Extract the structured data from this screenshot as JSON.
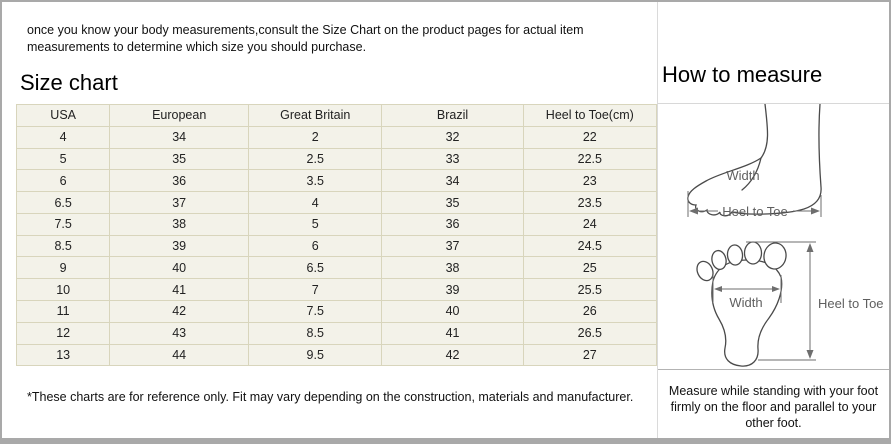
{
  "page": {
    "intro": "once you know your body measurements,consult the Size Chart on the product pages for actual item measurements to determine which size you should purchase.",
    "size_chart_title": "Size chart",
    "footnote": "*These charts are for reference only. Fit may vary depending on the construction, materials and manufacturer."
  },
  "size_table": {
    "columns": [
      "USA",
      "European",
      "Great Britain",
      "Brazil",
      "Heel to Toe(cm)"
    ],
    "rows": [
      [
        "4",
        "34",
        "2",
        "32",
        "22"
      ],
      [
        "5",
        "35",
        "2.5",
        "33",
        "22.5"
      ],
      [
        "6",
        "36",
        "3.5",
        "34",
        "23"
      ],
      [
        "6.5",
        "37",
        "4",
        "35",
        "23.5"
      ],
      [
        "7.5",
        "38",
        "5",
        "36",
        "24"
      ],
      [
        "8.5",
        "39",
        "6",
        "37",
        "24.5"
      ],
      [
        "9",
        "40",
        "6.5",
        "38",
        "25"
      ],
      [
        "10",
        "41",
        "7",
        "39",
        "25.5"
      ],
      [
        "11",
        "42",
        "7.5",
        "40",
        "26"
      ],
      [
        "12",
        "43",
        "8.5",
        "41",
        "26.5"
      ],
      [
        "13",
        "44",
        "9.5",
        "42",
        "27"
      ]
    ]
  },
  "measure_panel": {
    "title": "How to measure",
    "side_diagram": {
      "width_label": "Width",
      "length_label": "Heel to Toe"
    },
    "sole_diagram": {
      "width_label": "Width",
      "length_label": "Heel to Toe"
    },
    "note": "Measure while standing with your foot firmly on the floor and parallel to your other foot."
  },
  "colors": {
    "table_cell_bg": "#f3f2e9",
    "table_border": "#d8d5bc",
    "frame_border": "#a9a9a9",
    "diagram_line": "#6e6e6e"
  }
}
